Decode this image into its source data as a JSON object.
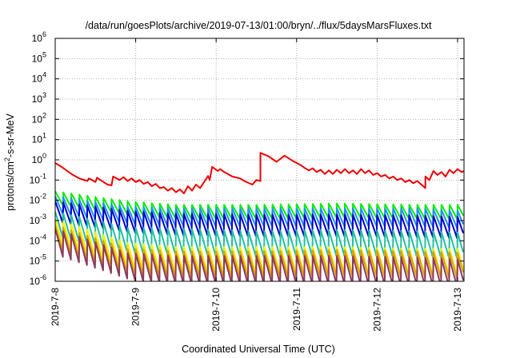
{
  "chart_data": {
    "type": "line",
    "title": "/data/run/goesPlots/archive/2019-07-13/01:00/bryn/../flux/5daysMarsFluxes.txt",
    "xlabel": "Coordinated Universal Time (UTC)",
    "ylabel": "protons/cm²-s-sr-MeV",
    "ylabel_parts": {
      "before": "protons/cm",
      "sup": "2",
      "after": "-s-sr-MeV"
    },
    "y_scale": "log",
    "ylim_exponents": [
      -6,
      6
    ],
    "y_tick_labels": [
      {
        "exp": -6,
        "text": "-6"
      },
      {
        "exp": -5,
        "text": "-5"
      },
      {
        "exp": -4,
        "text": "-4"
      },
      {
        "exp": -3,
        "text": "-3"
      },
      {
        "exp": -2,
        "text": "-2"
      },
      {
        "exp": -1,
        "text": "-1"
      },
      {
        "exp": 0,
        "text": "0"
      },
      {
        "exp": 1,
        "text": "1"
      },
      {
        "exp": 2,
        "text": "2"
      },
      {
        "exp": 3,
        "text": "3"
      },
      {
        "exp": 4,
        "text": "4"
      },
      {
        "exp": 5,
        "text": "5"
      },
      {
        "exp": 6,
        "text": "6"
      }
    ],
    "x_range_days": [
      0,
      5.08
    ],
    "x_ticks": [
      {
        "day": 0,
        "label": "2019-7-8"
      },
      {
        "day": 1,
        "label": "2019-7-9"
      },
      {
        "day": 2,
        "label": "2019-7-10"
      },
      {
        "day": 3,
        "label": "2019-7-11"
      },
      {
        "day": 4,
        "label": "2019-7-12"
      },
      {
        "day": 5,
        "label": "2019-7-13"
      }
    ],
    "grid": true,
    "series": [
      {
        "color": "#ee0000",
        "x": [
          0,
          0.08,
          0.15,
          0.22,
          0.3,
          0.4,
          0.42,
          0.5,
          0.52,
          0.6,
          0.65,
          0.7,
          0.72,
          0.8,
          0.85,
          0.9,
          0.95,
          1.0,
          1.05,
          1.1,
          1.15,
          1.2,
          1.25,
          1.3,
          1.35,
          1.4,
          1.45,
          1.5,
          1.55,
          1.6,
          1.65,
          1.7,
          1.75,
          1.8,
          1.9,
          1.92,
          1.95,
          2.02,
          2.05,
          2.1,
          2.2,
          2.3,
          2.35,
          2.45,
          2.5,
          2.55,
          2.55,
          2.65,
          2.75,
          2.85,
          2.95,
          3.05,
          3.1,
          3.15,
          3.2,
          3.25,
          3.3,
          3.35,
          3.4,
          3.45,
          3.5,
          3.55,
          3.6,
          3.65,
          3.7,
          3.75,
          3.8,
          3.85,
          3.9,
          3.95,
          4.0,
          4.05,
          4.1,
          4.15,
          4.2,
          4.25,
          4.3,
          4.35,
          4.4,
          4.45,
          4.5,
          4.55,
          4.6,
          4.6,
          4.65,
          4.7,
          4.75,
          4.8,
          4.85,
          4.9,
          4.95,
          5.0,
          5.05,
          5.08
        ],
        "y": [
          0.7,
          0.45,
          0.28,
          0.18,
          0.12,
          0.09,
          0.12,
          0.08,
          0.13,
          0.08,
          0.06,
          0.055,
          0.15,
          0.1,
          0.14,
          0.09,
          0.12,
          0.08,
          0.1,
          0.065,
          0.08,
          0.05,
          0.065,
          0.04,
          0.045,
          0.03,
          0.04,
          0.025,
          0.035,
          0.022,
          0.05,
          0.03,
          0.06,
          0.04,
          0.16,
          0.1,
          0.45,
          0.28,
          0.35,
          0.25,
          0.15,
          0.12,
          0.09,
          0.06,
          0.1,
          0.09,
          2.2,
          1.5,
          0.8,
          1.6,
          0.9,
          0.55,
          0.4,
          0.3,
          0.38,
          0.25,
          0.32,
          0.2,
          0.3,
          0.2,
          0.32,
          0.22,
          0.35,
          0.22,
          0.3,
          0.2,
          0.35,
          0.22,
          0.3,
          0.18,
          0.22,
          0.15,
          0.18,
          0.12,
          0.15,
          0.1,
          0.12,
          0.08,
          0.1,
          0.07,
          0.09,
          0.06,
          0.04,
          0.15,
          0.1,
          0.28,
          0.18,
          0.25,
          0.15,
          0.32,
          0.22,
          0.35,
          0.25,
          0.28
        ]
      },
      {
        "color": "#00ee00",
        "start": 0.028,
        "period": 0.1,
        "decay": 5,
        "levels": [
          [
            0,
            0.028
          ],
          [
            0.9,
            0.009
          ],
          [
            1.5,
            0.006
          ],
          [
            2.5,
            0.006
          ],
          [
            3.5,
            0.007
          ],
          [
            4.5,
            0.006
          ],
          [
            5.08,
            0.006
          ]
        ]
      },
      {
        "color": "#1e90ff",
        "start": 0.016,
        "period": 0.1,
        "decay": 8,
        "levels": [
          [
            0,
            0.016
          ],
          [
            0.9,
            0.005
          ],
          [
            1.5,
            0.004
          ],
          [
            2.5,
            0.004
          ],
          [
            3.5,
            0.004
          ],
          [
            4.5,
            0.004
          ],
          [
            5.08,
            0.003
          ]
        ]
      },
      {
        "color": "#0000cc",
        "start": 0.009,
        "period": 0.1,
        "decay": 12,
        "levels": [
          [
            0,
            0.009
          ],
          [
            0.9,
            0.003
          ],
          [
            1.5,
            0.0022
          ],
          [
            2.5,
            0.002
          ],
          [
            3.5,
            0.002
          ],
          [
            4.5,
            0.0018
          ],
          [
            5.08,
            0.0015
          ]
        ]
      },
      {
        "color": "#20c0a0",
        "start": 0.0028,
        "period": 0.1,
        "decay": 20,
        "levels": [
          [
            0,
            0.0028
          ],
          [
            0.9,
            0.00045
          ],
          [
            1.5,
            0.0004
          ],
          [
            2.5,
            0.0003
          ],
          [
            3.5,
            0.00035
          ],
          [
            4.5,
            0.0003
          ],
          [
            5.08,
            0.00025
          ]
        ]
      },
      {
        "color": "#ffee00",
        "start": 0.0012,
        "period": 0.1,
        "decay": 20,
        "levels": [
          [
            0,
            0.0012
          ],
          [
            0.9,
            8e-05
          ],
          [
            1.5,
            5e-05
          ],
          [
            2.5,
            5e-05
          ],
          [
            3.5,
            5e-05
          ],
          [
            4.5,
            4e-05
          ],
          [
            5.08,
            4e-05
          ]
        ]
      },
      {
        "color": "#e0a000",
        "start": 0.0006,
        "period": 0.1,
        "decay": 20,
        "levels": [
          [
            0,
            0.0006
          ],
          [
            0.9,
            4e-05
          ],
          [
            1.5,
            3e-05
          ],
          [
            2.5,
            3e-05
          ],
          [
            3.5,
            3.5e-05
          ],
          [
            4.5,
            3e-05
          ],
          [
            5.08,
            2.5e-05
          ]
        ]
      },
      {
        "color": "#8b3a62",
        "start": 0.0004,
        "period": 0.1,
        "decay": 25,
        "levels": [
          [
            0,
            0.0004
          ],
          [
            0.9,
            2.5e-05
          ],
          [
            1.5,
            1.8e-05
          ],
          [
            2.5,
            1.8e-05
          ],
          [
            3.5,
            1.8e-05
          ],
          [
            4.5,
            1.5e-05
          ],
          [
            5.08,
            1.2e-05
          ]
        ]
      }
    ]
  }
}
